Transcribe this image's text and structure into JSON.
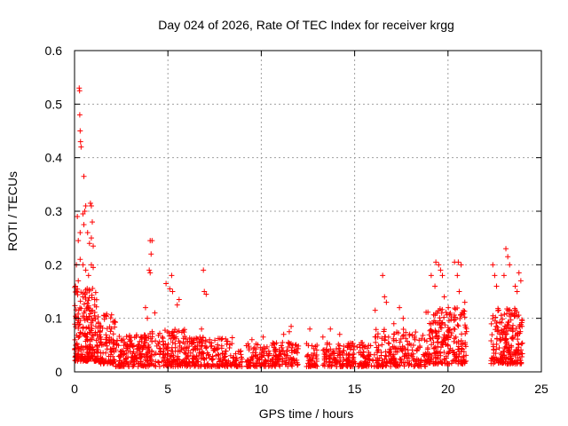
{
  "chart_data": {
    "type": "scatter",
    "title": "Day 024 of 2026, Rate Of TEC Index for receiver krgg",
    "xlabel": "GPS time / hours",
    "ylabel": "ROTI / TECUs",
    "xlim": [
      0,
      25
    ],
    "ylim": [
      0,
      0.6
    ],
    "xticks": [
      "0",
      "5",
      "10",
      "15",
      "20",
      "25"
    ],
    "yticks": [
      "0",
      "0.1",
      "0.2",
      "0.3",
      "0.4",
      "0.5",
      "0.6"
    ],
    "grid": true,
    "marker": "plus",
    "series": [
      {
        "name": "ROTI",
        "color": "#ff0000",
        "points": [
          [
            0.25,
            0.53
          ],
          [
            0.27,
            0.525
          ],
          [
            0.28,
            0.48
          ],
          [
            0.3,
            0.45
          ],
          [
            0.32,
            0.43
          ],
          [
            0.35,
            0.42
          ],
          [
            0.5,
            0.365
          ],
          [
            0.6,
            0.31
          ],
          [
            0.85,
            0.315
          ],
          [
            0.9,
            0.31
          ],
          [
            0.45,
            0.295
          ],
          [
            0.55,
            0.3
          ],
          [
            0.15,
            0.29
          ],
          [
            0.95,
            0.28
          ],
          [
            0.5,
            0.275
          ],
          [
            0.3,
            0.26
          ],
          [
            0.7,
            0.26
          ],
          [
            0.9,
            0.25
          ],
          [
            0.2,
            0.245
          ],
          [
            0.8,
            0.24
          ],
          [
            1.0,
            0.235
          ],
          [
            0.1,
            0.2
          ],
          [
            0.3,
            0.21
          ],
          [
            0.45,
            0.2
          ],
          [
            0.6,
            0.19
          ],
          [
            0.75,
            0.18
          ],
          [
            0.9,
            0.2
          ],
          [
            1.0,
            0.195
          ],
          [
            0.05,
            0.16
          ],
          [
            0.2,
            0.17
          ],
          [
            4.05,
            0.245
          ],
          [
            4.15,
            0.245
          ],
          [
            4.1,
            0.22
          ],
          [
            4.0,
            0.19
          ],
          [
            4.05,
            0.185
          ],
          [
            3.8,
            0.12
          ],
          [
            4.3,
            0.11
          ],
          [
            3.9,
            0.1
          ],
          [
            5.2,
            0.18
          ],
          [
            5.1,
            0.155
          ],
          [
            5.25,
            0.15
          ],
          [
            5.6,
            0.135
          ],
          [
            5.5,
            0.125
          ],
          [
            4.9,
            0.165
          ],
          [
            6.9,
            0.19
          ],
          [
            6.95,
            0.15
          ],
          [
            7.05,
            0.145
          ],
          [
            6.8,
            0.08
          ],
          [
            9.5,
            0.06
          ],
          [
            10.1,
            0.065
          ],
          [
            11.2,
            0.07
          ],
          [
            11.6,
            0.085
          ],
          [
            11.5,
            0.075
          ],
          [
            12.6,
            0.08
          ],
          [
            13.3,
            0.065
          ],
          [
            13.7,
            0.08
          ],
          [
            14.2,
            0.07
          ],
          [
            16.1,
            0.115
          ],
          [
            16.5,
            0.18
          ],
          [
            16.6,
            0.14
          ],
          [
            16.7,
            0.13
          ],
          [
            17.4,
            0.12
          ],
          [
            17.6,
            0.1
          ],
          [
            17.1,
            0.09
          ],
          [
            19.1,
            0.18
          ],
          [
            19.35,
            0.205
          ],
          [
            19.5,
            0.2
          ],
          [
            19.6,
            0.19
          ],
          [
            19.7,
            0.18
          ],
          [
            19.3,
            0.16
          ],
          [
            19.8,
            0.14
          ],
          [
            20.35,
            0.205
          ],
          [
            20.55,
            0.205
          ],
          [
            20.7,
            0.2
          ],
          [
            20.5,
            0.18
          ],
          [
            20.6,
            0.15
          ],
          [
            20.9,
            0.13
          ],
          [
            22.4,
            0.2
          ],
          [
            22.5,
            0.18
          ],
          [
            22.6,
            0.16
          ],
          [
            23.1,
            0.23
          ],
          [
            23.2,
            0.215
          ],
          [
            23.3,
            0.2
          ],
          [
            23.0,
            0.18
          ],
          [
            23.6,
            0.16
          ],
          [
            23.8,
            0.185
          ],
          [
            23.9,
            0.17
          ],
          [
            23.7,
            0.15
          ]
        ],
        "segments": [
          {
            "x": [
              0.0,
              1.2
            ],
            "y": [
              0.02,
              0.16
            ],
            "n": 220
          },
          {
            "x": [
              1.2,
              2.2
            ],
            "y": [
              0.015,
              0.11
            ],
            "n": 110
          },
          {
            "x": [
              2.2,
              4.0
            ],
            "y": [
              0.01,
              0.07
            ],
            "n": 180
          },
          {
            "x": [
              4.0,
              6.0
            ],
            "y": [
              0.01,
              0.08
            ],
            "n": 170
          },
          {
            "x": [
              6.0,
              8.5
            ],
            "y": [
              0.01,
              0.065
            ],
            "n": 190
          },
          {
            "x": [
              8.5,
              9.0
            ],
            "y": [
              0.01,
              0.04
            ],
            "n": 30
          },
          {
            "x": [
              9.2,
              12.0
            ],
            "y": [
              0.01,
              0.055
            ],
            "n": 200
          },
          {
            "x": [
              12.4,
              13.0
            ],
            "y": [
              0.01,
              0.055
            ],
            "n": 45
          },
          {
            "x": [
              13.3,
              16.0
            ],
            "y": [
              0.01,
              0.055
            ],
            "n": 200
          },
          {
            "x": [
              16.0,
              18.8
            ],
            "y": [
              0.01,
              0.08
            ],
            "n": 210
          },
          {
            "x": [
              18.8,
              21.0
            ],
            "y": [
              0.015,
              0.12
            ],
            "n": 240
          },
          {
            "x": [
              22.3,
              24.0
            ],
            "y": [
              0.015,
              0.12
            ],
            "n": 220
          }
        ]
      }
    ]
  }
}
